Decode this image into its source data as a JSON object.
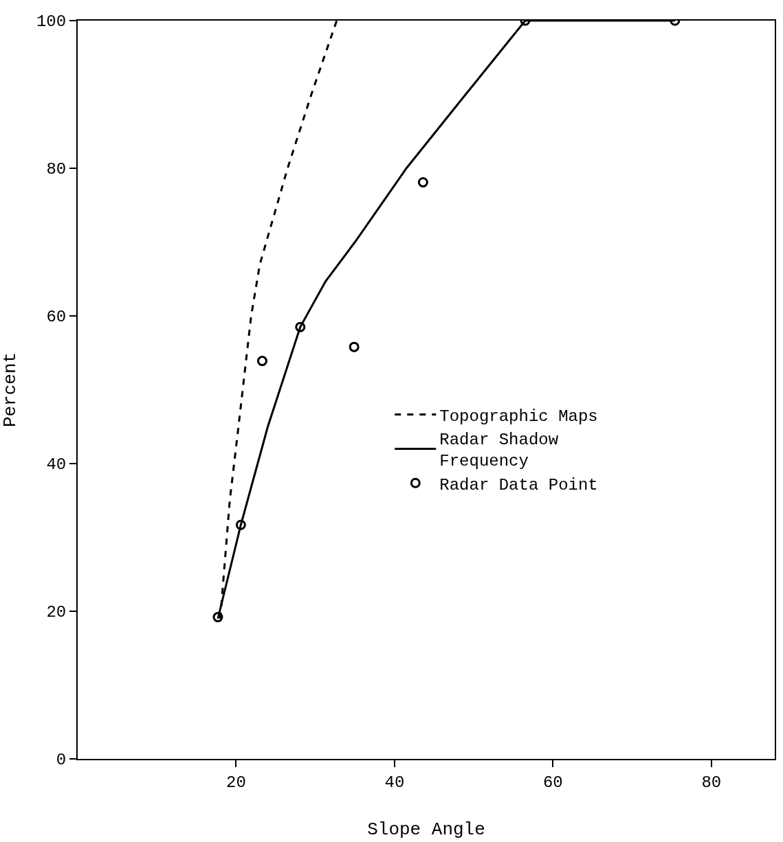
{
  "chart_data": {
    "type": "line",
    "xlabel": "Slope Angle",
    "ylabel": "Percent",
    "xlim": [
      0,
      88
    ],
    "ylim": [
      0,
      100
    ],
    "xticks": [
      20,
      40,
      60,
      80
    ],
    "yticks": [
      0,
      20,
      40,
      60,
      80,
      100
    ],
    "grid": false,
    "legend": "right",
    "series": [
      {
        "name": "Topographic Maps",
        "line_style": "dashed",
        "color": "#000000",
        "x": [
          18,
          19.2,
          20.3,
          21.9,
          23,
          26.5,
          29.5,
          32.7
        ],
        "values": [
          19,
          35,
          45,
          60,
          67,
          80,
          90,
          100
        ]
      },
      {
        "name": "Radar Shadow\nFrequency",
        "line_style": "solid",
        "color": "#000000",
        "x": [
          17.7,
          20.6,
          24,
          28.1,
          31.3,
          35,
          41.5,
          48,
          56.5,
          75.4
        ],
        "values": [
          19,
          31.7,
          45,
          58.5,
          64.7,
          70,
          80,
          88.7,
          100,
          100
        ]
      },
      {
        "name": "Radar Data Point",
        "type": "scatter",
        "marker": "circle",
        "color": "#000000",
        "x": [
          17.7,
          20.6,
          23.3,
          28.1,
          34.9,
          43.6,
          56.5,
          75.4
        ],
        "values": [
          19.2,
          31.7,
          53.9,
          58.5,
          55.8,
          78.1,
          100,
          100
        ]
      }
    ]
  }
}
